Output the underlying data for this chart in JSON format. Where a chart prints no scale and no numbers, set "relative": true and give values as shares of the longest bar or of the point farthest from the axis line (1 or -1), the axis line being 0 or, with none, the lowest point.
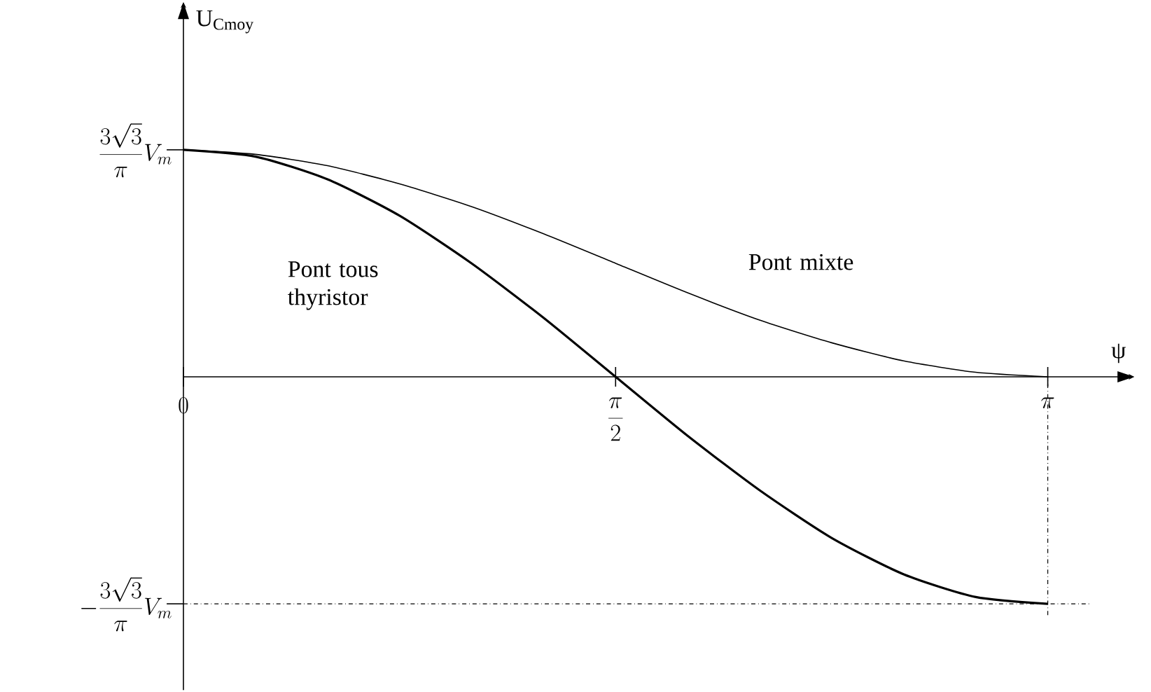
{
  "chart_data": {
    "type": "line",
    "xlabel": "ψ",
    "ylabel": "U$_{Cmoy}$",
    "relative": true,
    "categories": [
      "0",
      null,
      null,
      null,
      null,
      null,
      "\\frac{\\pi}{2}",
      null,
      null,
      null,
      null,
      null,
      "\\pi"
    ],
    "series": [
      {
        "name": "Pont tous thyristor",
        "color": "#000000",
        "values": [
          1,
          0.97,
          0.87,
          0.71,
          0.5,
          0.26,
          0,
          -0.26,
          -0.5,
          -0.71,
          -0.87,
          -0.97,
          -1
        ]
      },
      {
        "name": "Pont mixte",
        "color": "#000000",
        "values": [
          1,
          0.98,
          0.93,
          0.85,
          0.75,
          0.63,
          0.5,
          0.37,
          0.25,
          0.15,
          0.07,
          0.02,
          0
        ]
      }
    ],
    "annotations": [
      {
        "text": "\\frac{3\\sqrt{3}}{\\pi}V_m",
        "x": "0",
        "y": 1
      },
      {
        "text": "-\\frac{3\\sqrt{3}}{\\pi}V_m",
        "x": "0",
        "y": -1
      }
    ],
    "ref_lines": [
      {
        "axis": "y",
        "value": -1,
        "line_style": "dashdot",
        "color": "#000000"
      },
      {
        "axis": "x",
        "value": "\\pi",
        "line_style": "dashdot",
        "color": "#000000"
      }
    ],
    "grid": false,
    "legend": false,
    "marker": "none",
    "line_style": "solid"
  }
}
